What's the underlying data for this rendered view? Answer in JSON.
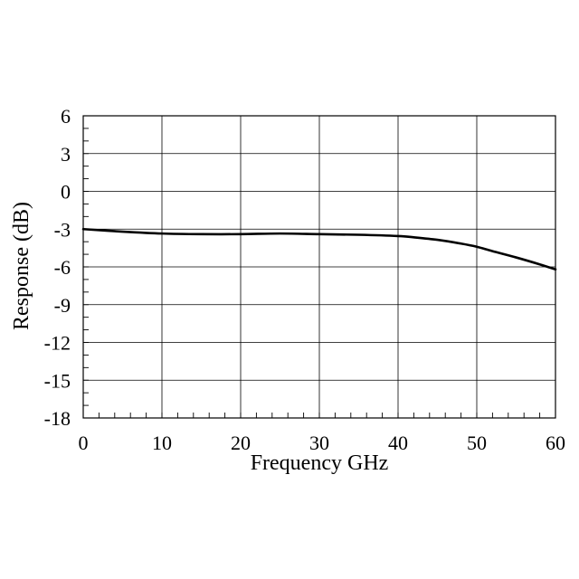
{
  "chart_data": {
    "type": "line",
    "title": "",
    "xlabel": "Frequency GHz",
    "ylabel": "Response (dB)",
    "xlim": [
      0,
      60
    ],
    "ylim": [
      -18,
      6
    ],
    "x_ticks": [
      0,
      10,
      20,
      30,
      40,
      50,
      60
    ],
    "y_ticks": [
      6,
      3,
      0,
      -3,
      -6,
      -9,
      -12,
      -15,
      -18
    ],
    "x_tick_labels": [
      "0",
      "10",
      "20",
      "30",
      "40",
      "50",
      "60"
    ],
    "y_tick_labels": [
      "6",
      "3",
      "0",
      "-3",
      "-6",
      "-9",
      "-12",
      "-15",
      "-18"
    ],
    "grid": true,
    "legend": "none",
    "series": [
      {
        "color": "#000000",
        "x": [
          0,
          5,
          10,
          15,
          20,
          25,
          30,
          35,
          40,
          42,
          45,
          48,
          50,
          52,
          55,
          58,
          60
        ],
        "y": [
          -3.0,
          -3.2,
          -3.35,
          -3.4,
          -3.4,
          -3.35,
          -3.4,
          -3.45,
          -3.55,
          -3.65,
          -3.85,
          -4.15,
          -4.4,
          -4.75,
          -5.25,
          -5.8,
          -6.2
        ]
      }
    ]
  }
}
